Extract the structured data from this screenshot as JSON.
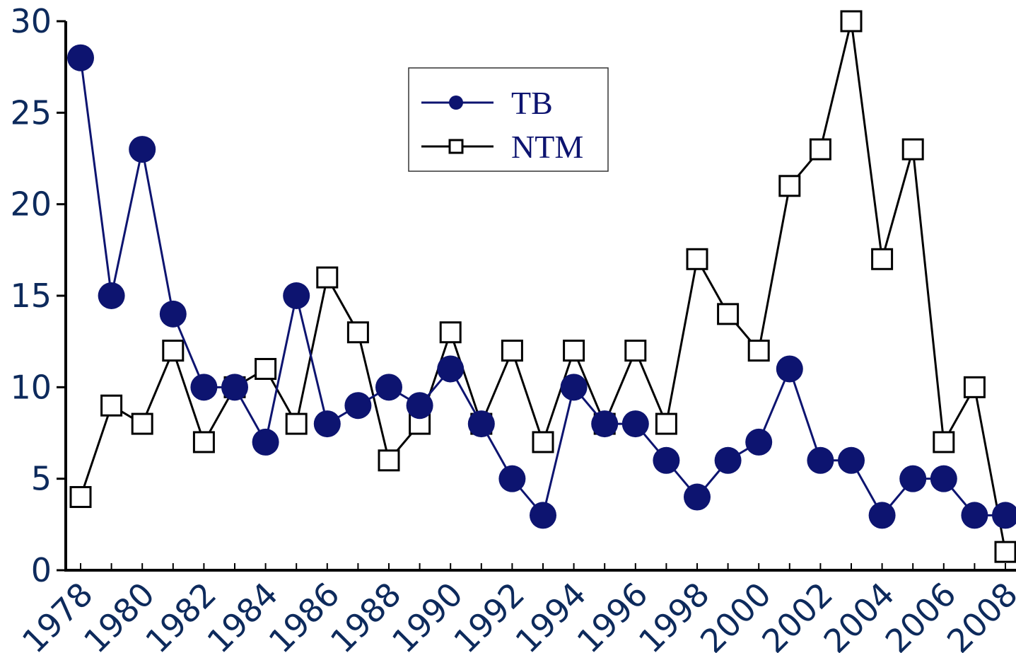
{
  "chart_data": {
    "type": "line",
    "x": [
      1978,
      1979,
      1980,
      1981,
      1982,
      1983,
      1984,
      1985,
      1986,
      1987,
      1988,
      1989,
      1990,
      1991,
      1992,
      1993,
      1994,
      1995,
      1996,
      1997,
      1998,
      1999,
      2000,
      2001,
      2002,
      2003,
      2004,
      2005,
      2006,
      2007,
      2008
    ],
    "series": [
      {
        "name": "TB",
        "color": "#0d1470",
        "marker": "filled-circle",
        "values": [
          28,
          15,
          23,
          14,
          10,
          10,
          7,
          15,
          8,
          9,
          10,
          9,
          11,
          8,
          5,
          3,
          10,
          8,
          8,
          6,
          4,
          6,
          7,
          11,
          6,
          6,
          3,
          5,
          5,
          3,
          3
        ]
      },
      {
        "name": "NTM",
        "color": "#000000",
        "marker": "open-square",
        "values": [
          4,
          9,
          8,
          12,
          7,
          10,
          11,
          8,
          16,
          13,
          6,
          8,
          13,
          8,
          12,
          7,
          12,
          8,
          12,
          8,
          17,
          14,
          12,
          21,
          23,
          30,
          17,
          23,
          7,
          10,
          1
        ]
      }
    ],
    "x_tick_labels": [
      "1978",
      "1980",
      "1982",
      "1984",
      "1986",
      "1988",
      "1990",
      "1992",
      "1994",
      "1996",
      "1998",
      "2000",
      "2002",
      "2004",
      "2006",
      "2008"
    ],
    "y_tick_labels": [
      "0",
      "5",
      "10",
      "15",
      "20",
      "25",
      "30"
    ],
    "ylim": [
      0,
      30
    ],
    "xlim": [
      1978,
      2008
    ],
    "grid": false,
    "legend_position": "top-center",
    "axis_label_color": "#0d2a5c",
    "legend_text_color": "#0d1470"
  }
}
